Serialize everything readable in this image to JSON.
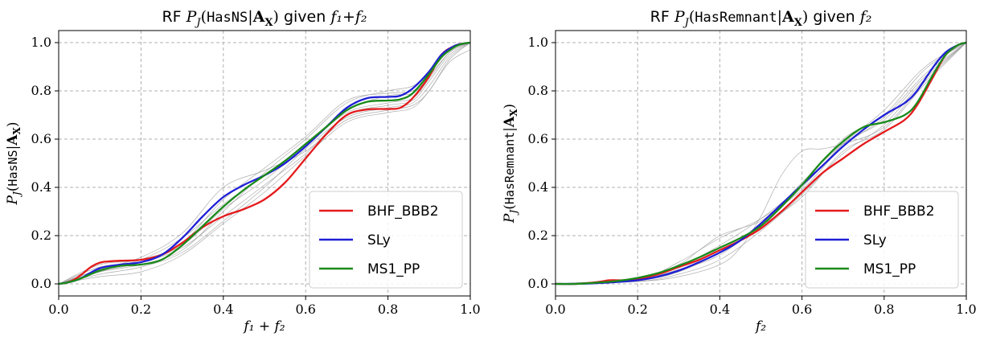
{
  "chart_data": [
    {
      "type": "line",
      "title": "RF P_J(HasNS|A_X) given f_1+f_2",
      "title_parts": {
        "prefix": "RF ",
        "func": "P",
        "sub": "J",
        "arg": "HasNS",
        "bar": "|",
        "cond": "A",
        "cond_sub": "X",
        "suffix": " given ",
        "given": "f₁+f₂"
      },
      "xlabel": "f₁ + f₂",
      "ylabel": "P_J(HasNS|A_X)",
      "ylabel_parts": {
        "func": "P",
        "sub": "J",
        "arg": "HasNS",
        "cond": "A",
        "cond_sub": "X"
      },
      "xlim": [
        0.0,
        1.0
      ],
      "ylim": [
        -0.05,
        1.05
      ],
      "xticks": [
        "0.0",
        "0.2",
        "0.4",
        "0.6",
        "0.8",
        "1.0"
      ],
      "yticks": [
        "0.0",
        "0.2",
        "0.4",
        "0.6",
        "0.8",
        "1.0"
      ],
      "grid": true,
      "legend_position": "bottom-right",
      "series": [
        {
          "name": "BHF_BBB2",
          "color": "#e41a1c",
          "x": [
            0.0,
            0.02,
            0.04,
            0.06,
            0.08,
            0.1,
            0.12,
            0.15,
            0.2,
            0.25,
            0.3,
            0.35,
            0.4,
            0.45,
            0.5,
            0.55,
            0.6,
            0.65,
            0.7,
            0.75,
            0.8,
            0.83,
            0.86,
            0.9,
            0.93,
            0.96,
            0.98,
            1.0
          ],
          "y": [
            0.0,
            0.005,
            0.02,
            0.045,
            0.072,
            0.088,
            0.093,
            0.096,
            0.1,
            0.12,
            0.17,
            0.235,
            0.28,
            0.31,
            0.35,
            0.42,
            0.52,
            0.62,
            0.7,
            0.723,
            0.725,
            0.73,
            0.77,
            0.86,
            0.95,
            0.985,
            0.995,
            1.0
          ]
        },
        {
          "name": "SLy",
          "color": "#1f1fd6",
          "x": [
            0.0,
            0.02,
            0.05,
            0.1,
            0.15,
            0.2,
            0.25,
            0.3,
            0.35,
            0.4,
            0.45,
            0.5,
            0.55,
            0.6,
            0.65,
            0.7,
            0.75,
            0.8,
            0.83,
            0.86,
            0.9,
            0.93,
            0.96,
            0.98,
            1.0
          ],
          "y": [
            0.0,
            0.005,
            0.02,
            0.065,
            0.08,
            0.09,
            0.12,
            0.19,
            0.28,
            0.36,
            0.41,
            0.45,
            0.5,
            0.57,
            0.65,
            0.73,
            0.77,
            0.775,
            0.78,
            0.81,
            0.88,
            0.95,
            0.985,
            0.995,
            1.0
          ]
        },
        {
          "name": "MS1_PP",
          "color": "#1a8a1a",
          "x": [
            0.0,
            0.02,
            0.05,
            0.1,
            0.15,
            0.2,
            0.25,
            0.3,
            0.35,
            0.4,
            0.45,
            0.5,
            0.55,
            0.6,
            0.65,
            0.7,
            0.75,
            0.8,
            0.83,
            0.86,
            0.9,
            0.93,
            0.96,
            0.98,
            1.0
          ],
          "y": [
            0.0,
            0.005,
            0.02,
            0.055,
            0.075,
            0.08,
            0.1,
            0.16,
            0.24,
            0.32,
            0.39,
            0.45,
            0.51,
            0.58,
            0.65,
            0.72,
            0.755,
            0.76,
            0.765,
            0.79,
            0.87,
            0.94,
            0.98,
            0.995,
            1.0
          ]
        }
      ],
      "background_lines": [
        {
          "x": [
            0.0,
            0.1,
            0.2,
            0.3,
            0.4,
            0.5,
            0.6,
            0.7,
            0.8,
            0.86,
            0.9,
            0.95,
            1.0
          ],
          "y": [
            0.0,
            0.06,
            0.1,
            0.19,
            0.33,
            0.45,
            0.58,
            0.72,
            0.78,
            0.79,
            0.86,
            0.96,
            1.0
          ]
        },
        {
          "x": [
            0.0,
            0.1,
            0.2,
            0.3,
            0.4,
            0.5,
            0.6,
            0.7,
            0.8,
            0.86,
            0.9,
            0.95,
            1.0
          ],
          "y": [
            0.0,
            0.07,
            0.09,
            0.15,
            0.28,
            0.41,
            0.54,
            0.7,
            0.74,
            0.76,
            0.84,
            0.95,
            1.0
          ]
        },
        {
          "x": [
            0.0,
            0.1,
            0.2,
            0.3,
            0.4,
            0.5,
            0.6,
            0.7,
            0.8,
            0.86,
            0.9,
            0.95,
            1.0
          ],
          "y": [
            0.0,
            0.05,
            0.08,
            0.14,
            0.3,
            0.46,
            0.6,
            0.75,
            0.8,
            0.82,
            0.88,
            0.97,
            1.0
          ]
        },
        {
          "x": [
            0.0,
            0.1,
            0.2,
            0.3,
            0.4,
            0.5,
            0.6,
            0.7,
            0.8,
            0.86,
            0.9,
            0.95,
            1.0
          ],
          "y": [
            0.0,
            0.04,
            0.07,
            0.13,
            0.26,
            0.4,
            0.56,
            0.69,
            0.73,
            0.75,
            0.82,
            0.94,
            1.0
          ]
        },
        {
          "x": [
            0.0,
            0.1,
            0.2,
            0.3,
            0.4,
            0.5,
            0.6,
            0.7,
            0.8,
            0.86,
            0.9,
            0.95,
            1.0
          ],
          "y": [
            0.0,
            0.06,
            0.11,
            0.21,
            0.4,
            0.47,
            0.55,
            0.68,
            0.72,
            0.74,
            0.8,
            0.93,
            1.0
          ]
        },
        {
          "x": [
            0.0,
            0.1,
            0.2,
            0.3,
            0.4,
            0.5,
            0.6,
            0.7,
            0.8,
            0.86,
            0.9,
            0.95,
            1.0
          ],
          "y": [
            0.0,
            0.03,
            0.05,
            0.12,
            0.25,
            0.38,
            0.53,
            0.67,
            0.71,
            0.73,
            0.8,
            0.92,
            0.97
          ]
        },
        {
          "x": [
            0.0,
            0.1,
            0.2,
            0.3,
            0.4,
            0.5,
            0.6,
            0.7,
            0.8,
            0.86,
            0.9,
            0.95,
            1.0
          ],
          "y": [
            0.0,
            0.08,
            0.1,
            0.17,
            0.35,
            0.48,
            0.61,
            0.76,
            0.79,
            0.8,
            0.87,
            0.97,
            1.0
          ]
        },
        {
          "x": [
            0.0,
            0.1,
            0.2,
            0.3,
            0.4,
            0.5,
            0.6,
            0.7,
            0.8,
            0.86,
            0.9,
            0.95,
            1.0
          ],
          "y": [
            0.0,
            0.05,
            0.09,
            0.16,
            0.31,
            0.43,
            0.57,
            0.71,
            0.75,
            0.77,
            0.85,
            0.96,
            1.0
          ]
        }
      ]
    },
    {
      "type": "line",
      "title": "RF P_J(HasRemnant|A_X) given f_2",
      "title_parts": {
        "prefix": "RF ",
        "func": "P",
        "sub": "J",
        "arg": "HasRemnant",
        "bar": "|",
        "cond": "A",
        "cond_sub": "X",
        "suffix": " given ",
        "given": "f₂"
      },
      "xlabel": "f₂",
      "ylabel": "P_J(HasRemnant|A_X)",
      "ylabel_parts": {
        "func": "P",
        "sub": "J",
        "arg": "HasRemnant",
        "cond": "A",
        "cond_sub": "X"
      },
      "xlim": [
        0.0,
        1.0
      ],
      "ylim": [
        -0.05,
        1.05
      ],
      "xticks": [
        "0.0",
        "0.2",
        "0.4",
        "0.6",
        "0.8",
        "1.0"
      ],
      "yticks": [
        "0.0",
        "0.2",
        "0.4",
        "0.6",
        "0.8",
        "1.0"
      ],
      "grid": true,
      "legend_position": "bottom-right",
      "series": [
        {
          "name": "BHF_BBB2",
          "color": "#e41a1c",
          "x": [
            0.0,
            0.05,
            0.1,
            0.13,
            0.16,
            0.2,
            0.25,
            0.3,
            0.35,
            0.4,
            0.45,
            0.5,
            0.55,
            0.6,
            0.65,
            0.7,
            0.75,
            0.8,
            0.85,
            0.88,
            0.92,
            0.95,
            0.98,
            1.0
          ],
          "y": [
            0.0,
            0.0,
            0.007,
            0.015,
            0.015,
            0.02,
            0.04,
            0.07,
            0.1,
            0.14,
            0.18,
            0.23,
            0.3,
            0.38,
            0.46,
            0.52,
            0.58,
            0.63,
            0.68,
            0.74,
            0.86,
            0.95,
            0.99,
            1.0
          ]
        },
        {
          "name": "SLy",
          "color": "#1f1fd6",
          "x": [
            0.0,
            0.05,
            0.1,
            0.15,
            0.2,
            0.25,
            0.3,
            0.35,
            0.4,
            0.45,
            0.5,
            0.55,
            0.6,
            0.65,
            0.7,
            0.75,
            0.8,
            0.85,
            0.88,
            0.92,
            0.95,
            0.98,
            1.0
          ],
          "y": [
            0.0,
            0.0,
            0.003,
            0.008,
            0.015,
            0.03,
            0.055,
            0.09,
            0.13,
            0.18,
            0.25,
            0.33,
            0.41,
            0.49,
            0.57,
            0.64,
            0.7,
            0.75,
            0.8,
            0.9,
            0.96,
            0.99,
            1.0
          ]
        },
        {
          "name": "MS1_PP",
          "color": "#1a8a1a",
          "x": [
            0.0,
            0.05,
            0.1,
            0.15,
            0.2,
            0.25,
            0.3,
            0.35,
            0.4,
            0.45,
            0.5,
            0.55,
            0.6,
            0.65,
            0.7,
            0.75,
            0.8,
            0.85,
            0.88,
            0.92,
            0.95,
            0.98,
            1.0
          ],
          "y": [
            0.0,
            0.0,
            0.005,
            0.012,
            0.025,
            0.045,
            0.075,
            0.11,
            0.15,
            0.19,
            0.24,
            0.32,
            0.41,
            0.51,
            0.59,
            0.65,
            0.67,
            0.7,
            0.75,
            0.87,
            0.95,
            0.99,
            1.0
          ]
        }
      ],
      "background_lines": [
        {
          "x": [
            0.0,
            0.2,
            0.3,
            0.4,
            0.45,
            0.5,
            0.55,
            0.6,
            0.65,
            0.7,
            0.8,
            0.9,
            1.0
          ],
          "y": [
            0.0,
            0.01,
            0.03,
            0.08,
            0.15,
            0.28,
            0.45,
            0.55,
            0.56,
            0.58,
            0.65,
            0.84,
            1.0
          ]
        },
        {
          "x": [
            0.0,
            0.2,
            0.3,
            0.35,
            0.4,
            0.45,
            0.5,
            0.55,
            0.6,
            0.7,
            0.8,
            0.9,
            1.0
          ],
          "y": [
            0.0,
            0.02,
            0.08,
            0.14,
            0.2,
            0.23,
            0.26,
            0.33,
            0.42,
            0.58,
            0.68,
            0.86,
            1.0
          ]
        },
        {
          "x": [
            0.0,
            0.2,
            0.3,
            0.4,
            0.5,
            0.6,
            0.7,
            0.8,
            0.9,
            1.0
          ],
          "y": [
            0.0,
            0.02,
            0.06,
            0.12,
            0.25,
            0.4,
            0.58,
            0.72,
            0.9,
            1.0
          ]
        },
        {
          "x": [
            0.0,
            0.2,
            0.3,
            0.4,
            0.5,
            0.6,
            0.7,
            0.8,
            0.9,
            1.0
          ],
          "y": [
            0.0,
            0.01,
            0.04,
            0.1,
            0.22,
            0.37,
            0.54,
            0.66,
            0.85,
            1.0
          ]
        },
        {
          "x": [
            0.0,
            0.2,
            0.3,
            0.4,
            0.5,
            0.6,
            0.7,
            0.8,
            0.9,
            1.0
          ],
          "y": [
            0.0,
            0.02,
            0.07,
            0.16,
            0.27,
            0.41,
            0.6,
            0.7,
            0.89,
            1.0
          ]
        },
        {
          "x": [
            0.0,
            0.2,
            0.3,
            0.4,
            0.5,
            0.6,
            0.7,
            0.8,
            0.9,
            1.0
          ],
          "y": [
            0.0,
            0.015,
            0.05,
            0.13,
            0.24,
            0.36,
            0.55,
            0.64,
            0.83,
            1.0
          ]
        },
        {
          "x": [
            0.0,
            0.2,
            0.3,
            0.4,
            0.5,
            0.6,
            0.7,
            0.8,
            0.9,
            1.0
          ],
          "y": [
            0.0,
            0.02,
            0.09,
            0.19,
            0.27,
            0.39,
            0.57,
            0.69,
            0.87,
            1.0
          ]
        }
      ]
    }
  ]
}
